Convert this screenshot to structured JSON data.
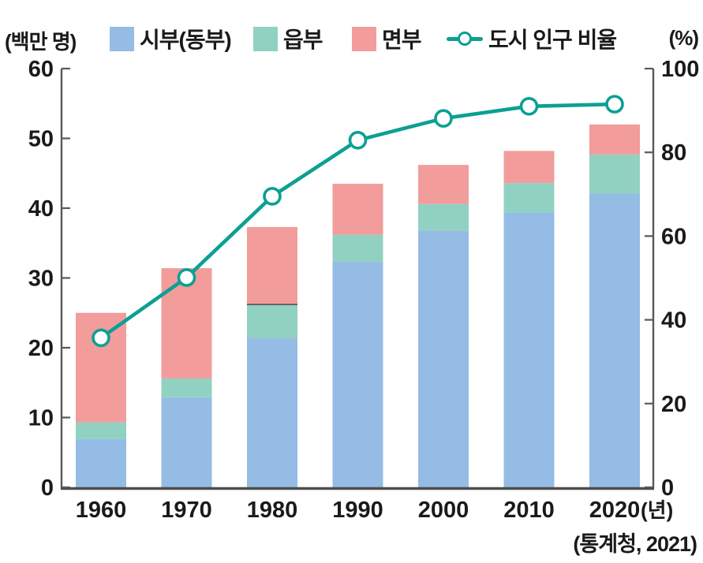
{
  "chart_data": {
    "type": "bar",
    "subtype": "stacked-bars-with-line-overlay",
    "title": "",
    "categories": [
      "1960",
      "1970",
      "1980",
      "1990",
      "2000",
      "2010",
      "2020"
    ],
    "series": [
      {
        "name": "시부(동부)",
        "color": "#94BCE4",
        "values": [
          6.9,
          12.9,
          21.4,
          32.3,
          36.8,
          39.4,
          42.1
        ]
      },
      {
        "name": "읍부",
        "color": "#91D1C2",
        "values": [
          2.4,
          2.7,
          4.8,
          3.9,
          3.8,
          4.2,
          5.6
        ]
      },
      {
        "name": "면부",
        "color": "#F29C9C",
        "values": [
          15.7,
          15.8,
          11.1,
          7.3,
          5.6,
          4.6,
          4.3
        ]
      }
    ],
    "stacked_totals": [
      25.0,
      31.4,
      37.3,
      43.5,
      46.2,
      48.2,
      52.0
    ],
    "line_series": {
      "name": "도시 인구 비율",
      "color": "#0BA093",
      "axis": "right",
      "values": [
        35.7,
        50.1,
        69.5,
        82.9,
        88.1,
        91.0,
        91.5
      ]
    },
    "left_axis": {
      "unit": "(백만 명)",
      "min": 0,
      "max": 60,
      "ticks": [
        0,
        10,
        20,
        30,
        40,
        50,
        60
      ]
    },
    "right_axis": {
      "unit": "(%)",
      "min": 0,
      "max": 100,
      "ticks": [
        0,
        20,
        40,
        60,
        80,
        100
      ]
    },
    "x_axis_suffix": "(년)",
    "divider_line": {
      "category_index": 2,
      "value": 26.2
    },
    "grid": false,
    "legend_position": "top",
    "source": "(통계청, 2021)",
    "axis_color": "#595959",
    "text_color": "#1a1a1a"
  }
}
